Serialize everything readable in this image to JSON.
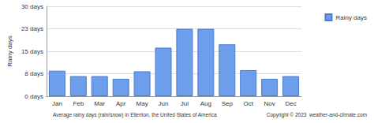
{
  "chart_data": {
    "type": "bar",
    "title": "Average rainy days (rain/snow) in Ellenton, the United States of America",
    "annotations": [
      "Copyright © 2023  weather-and-climate.com"
    ],
    "y_label": "Rainy days",
    "categories": [
      "Jan",
      "Feb",
      "Mar",
      "Apr",
      "May",
      "Jun",
      "Jul",
      "Aug",
      "Sep",
      "Oct",
      "Nov",
      "Dec"
    ],
    "series": [
      {
        "name": "Rainy days",
        "color": "#6d9eeb",
        "values": [
          8.5,
          6.7,
          6.7,
          5.8,
          8.3,
          16.2,
          22.5,
          22.5,
          17.3,
          8.7,
          5.8,
          6.7
        ]
      }
    ],
    "ylim": [
      0,
      30
    ],
    "yticks": [
      {
        "value": 0,
        "label": "0 days"
      },
      {
        "value": 7.5,
        "label": "8 days"
      },
      {
        "value": 15,
        "label": "15 days"
      },
      {
        "value": 22.5,
        "label": "23 days"
      },
      {
        "value": 30,
        "label": "30 days"
      }
    ],
    "grid": true,
    "legend": "top-right"
  }
}
